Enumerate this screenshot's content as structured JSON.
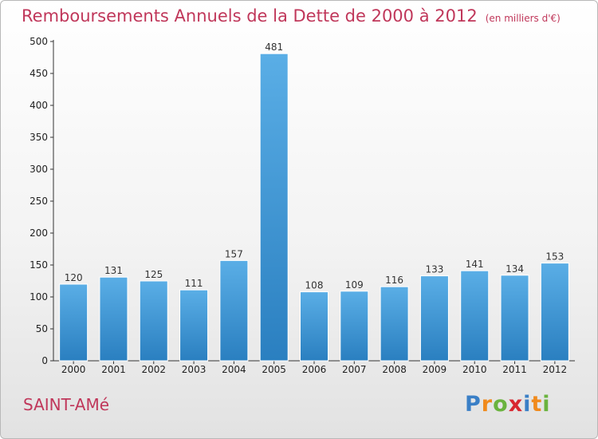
{
  "title": "Remboursements Annuels de la Dette de 2000 à 2012",
  "unit_note": "(en milliers d'€)",
  "commune": "SAINT-AMé",
  "logo": {
    "letters": [
      "P",
      "r",
      "o",
      "x",
      "i",
      "t",
      "i"
    ],
    "colors": [
      "#3a7fc6",
      "#f08a1c",
      "#6ab33e",
      "#d8262f",
      "#3a7fc6",
      "#f08a1c",
      "#6ab33e"
    ]
  },
  "colors": {
    "title": "#c0375a",
    "bar_light": "#5aaee6",
    "bar_dark": "#2a7fc0"
  },
  "chart_data": {
    "type": "bar",
    "categories": [
      "2000",
      "2001",
      "2002",
      "2003",
      "2004",
      "2005",
      "2006",
      "2007",
      "2008",
      "2009",
      "2010",
      "2011",
      "2012"
    ],
    "values": [
      120,
      131,
      125,
      111,
      157,
      481,
      108,
      109,
      116,
      133,
      141,
      134,
      153
    ],
    "ylim": [
      0,
      500
    ],
    "yticks": [
      0,
      50,
      100,
      150,
      200,
      250,
      300,
      350,
      400,
      450,
      500
    ],
    "grid": false,
    "legend": "none"
  }
}
